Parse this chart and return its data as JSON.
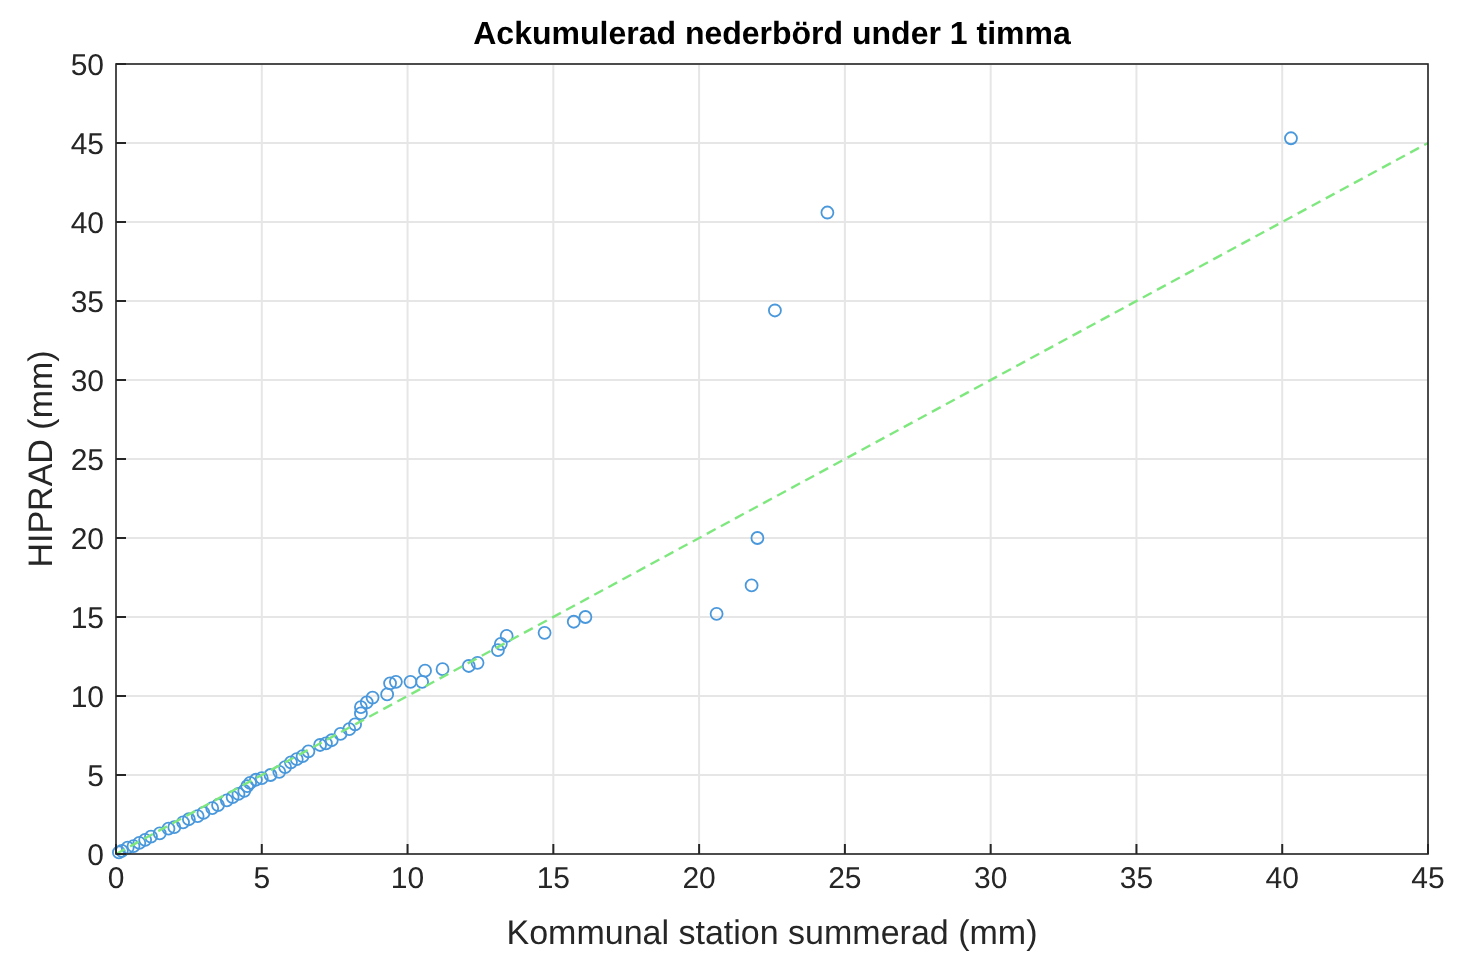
{
  "chart_data": {
    "type": "scatter",
    "title": "Ackumulerad nederbörd under 1 timma",
    "xlabel": "Kommunal station summerad (mm)",
    "ylabel": "HIPRAD (mm)",
    "xlim": [
      0,
      45
    ],
    "ylim": [
      0,
      50
    ],
    "xticks": [
      0,
      5,
      10,
      15,
      20,
      25,
      30,
      35,
      40,
      45
    ],
    "yticks": [
      0,
      5,
      10,
      15,
      20,
      25,
      30,
      35,
      40,
      45,
      50
    ],
    "grid": true,
    "marker": "circle",
    "series": [
      {
        "color": "#4a98dc",
        "x": [
          0.1,
          0.2,
          0.4,
          0.6,
          0.8,
          1.0,
          1.2,
          1.5,
          1.8,
          2.0,
          2.3,
          2.5,
          2.8,
          3.0,
          3.3,
          3.5,
          3.8,
          4.0,
          4.2,
          4.4,
          4.5,
          4.6,
          4.8,
          5.0,
          5.3,
          5.6,
          5.8,
          6.0,
          6.2,
          6.4,
          6.6,
          7.0,
          7.2,
          7.4,
          7.7,
          8.0,
          8.2,
          8.4,
          8.4,
          8.6,
          8.8,
          9.3,
          9.4,
          9.6,
          10.1,
          10.5,
          10.6,
          11.2,
          12.1,
          12.4,
          13.1,
          13.2,
          13.4,
          14.7,
          15.7,
          16.1,
          20.6,
          21.8,
          22.0,
          22.6,
          24.4,
          40.3
        ],
        "values": [
          0.1,
          0.2,
          0.4,
          0.5,
          0.7,
          0.9,
          1.1,
          1.3,
          1.6,
          1.7,
          2.0,
          2.2,
          2.4,
          2.6,
          2.9,
          3.1,
          3.4,
          3.6,
          3.8,
          4.0,
          4.3,
          4.5,
          4.7,
          4.8,
          5.0,
          5.2,
          5.5,
          5.8,
          6.0,
          6.2,
          6.5,
          6.9,
          7.0,
          7.2,
          7.6,
          7.9,
          8.2,
          8.9,
          9.3,
          9.6,
          9.9,
          10.1,
          10.8,
          10.9,
          10.9,
          10.9,
          11.6,
          11.7,
          11.9,
          12.1,
          12.9,
          13.3,
          13.8,
          14.0,
          14.7,
          15.0,
          15.2,
          17.0,
          20.0,
          34.4,
          40.6,
          45.3
        ]
      },
      {
        "type": "line",
        "color": "#7ee87e",
        "line_style": "dashed",
        "marker": "none",
        "x": [
          0,
          45
        ],
        "values": [
          0,
          45
        ]
      }
    ]
  }
}
